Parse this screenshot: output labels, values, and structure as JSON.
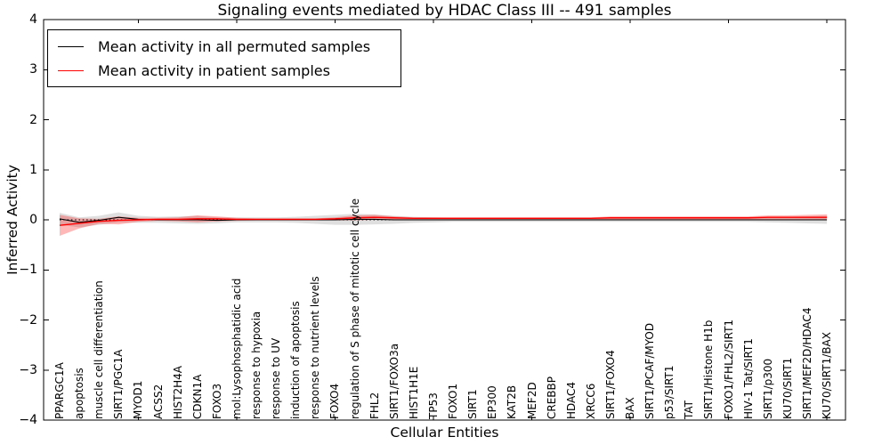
{
  "figure": {
    "title": "Signaling events mediated by HDAC Class III -- 491 samples",
    "xlabel": "Cellular Entities",
    "ylabel": "Inferred Activity"
  },
  "legend": {
    "entries": [
      {
        "label": "Mean activity in all permuted samples",
        "color": "#000000"
      },
      {
        "label": "Mean activity in patient samples",
        "color": "#ff0000"
      }
    ]
  },
  "chart_data": {
    "type": "line",
    "title": "Signaling events mediated by HDAC Class III -- 491 samples",
    "xlabel": "Cellular Entities",
    "ylabel": "Inferred Activity",
    "ylim": [
      -4,
      4
    ],
    "yticks": [
      4,
      3,
      2,
      1,
      0,
      -1,
      -2,
      -3,
      -4
    ],
    "grid": false,
    "legend_position": "upper left",
    "zero_line": {
      "y": 0,
      "style": "dotted",
      "color": "#000000"
    },
    "xtick_minor_indices": [
      4,
      9,
      14,
      19,
      24,
      29,
      34,
      39
    ],
    "categories": [
      "PPARGC1A",
      "apoptosis",
      "muscle cell differentiation",
      "SIRT1/PGC1A",
      "MYOD1",
      "ACSS2",
      "HIST2H4A",
      "CDKN1A",
      "FOXO3",
      "mol:Lysophosphatidic acid",
      "response to hypoxia",
      "response to UV",
      "induction of apoptosis",
      "response to nutrient levels",
      "FOXO4",
      "regulation of S phase of mitotic cell cycle",
      "FHL2",
      "SIRT1/FOXO3a",
      "HIST1H1E",
      "TP53",
      "FOXO1",
      "SIRT1",
      "EP300",
      "KAT2B",
      "MEF2D",
      "CREBBP",
      "HDAC4",
      "XRCC6",
      "SIRT1/FOXO4",
      "BAX",
      "SIRT1/PCAF/MYOD",
      "p53/SIRT1",
      "TAT",
      "SIRT1/Histone H1b",
      "FOXO1/FHL2/SIRT1",
      "HIV-1 Tat/SIRT1",
      "SIRT1/p300",
      "KU70/SIRT1",
      "SIRT1/MEF2D/HDAC4",
      "KU70/SIRT1/BAX"
    ],
    "series": [
      {
        "name": "Mean activity in all permuted samples",
        "color": "#000000",
        "band_color": "rgba(128,128,128,0.25)",
        "values": [
          0.02,
          -0.05,
          -0.01,
          0.05,
          0.01,
          0,
          0,
          0,
          -0.01,
          0,
          0,
          0,
          0,
          0,
          0,
          0.01,
          0.01,
          0,
          0,
          0,
          0,
          0,
          0,
          0,
          0,
          0,
          0,
          0,
          0,
          0,
          0,
          0,
          0,
          0,
          0,
          0,
          0,
          0,
          0,
          0
        ],
        "band": [
          0.12,
          0.1,
          0.09,
          0.1,
          0.07,
          0.06,
          0.07,
          0.08,
          0.06,
          0.05,
          0.05,
          0.05,
          0.06,
          0.08,
          0.1,
          0.11,
          0.1,
          0.08,
          0.06,
          0.05,
          0.04,
          0.04,
          0.04,
          0.04,
          0.04,
          0.04,
          0.04,
          0.04,
          0.04,
          0.04,
          0.04,
          0.04,
          0.04,
          0.04,
          0.04,
          0.04,
          0.05,
          0.06,
          0.07,
          0.08
        ]
      },
      {
        "name": "Mean activity in patient samples",
        "color": "#ff0000",
        "band_color": "rgba(255,0,0,0.28)",
        "values": [
          -0.11,
          -0.07,
          -0.03,
          -0.01,
          0,
          0.01,
          0.01,
          0.02,
          0.02,
          0.01,
          0.01,
          0.01,
          0.01,
          0.01,
          0.02,
          0.04,
          0.05,
          0.04,
          0.03,
          0.03,
          0.03,
          0.03,
          0.03,
          0.03,
          0.03,
          0.03,
          0.03,
          0.03,
          0.04,
          0.04,
          0.04,
          0.04,
          0.04,
          0.04,
          0.04,
          0.04,
          0.05,
          0.05,
          0.05,
          0.05
        ],
        "band": [
          0.21,
          0.1,
          0.05,
          0.08,
          0.04,
          0.03,
          0.04,
          0.07,
          0.05,
          0.03,
          0.02,
          0.02,
          0.02,
          0.02,
          0.03,
          0.05,
          0.05,
          0.03,
          0.02,
          0.02,
          0.02,
          0.02,
          0.02,
          0.02,
          0.02,
          0.02,
          0.02,
          0.02,
          0.03,
          0.03,
          0.03,
          0.03,
          0.03,
          0.03,
          0.03,
          0.03,
          0.04,
          0.04,
          0.05,
          0.06
        ]
      }
    ]
  }
}
